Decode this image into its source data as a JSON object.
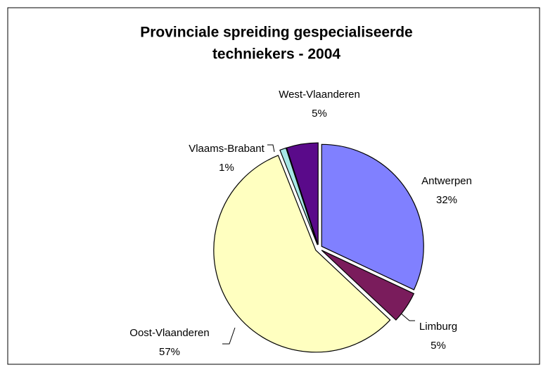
{
  "chart_data": {
    "type": "pie",
    "title": [
      "Provinciale spreiding gespecialiseerde",
      "techniekers - 2004"
    ],
    "categories": [
      "Antwerpen",
      "Limburg",
      "Oost-Vlaanderen",
      "Vlaams-Brabant",
      "West-Vlaanderen"
    ],
    "values": [
      32,
      5,
      57,
      1,
      5
    ],
    "value_labels": [
      "32%",
      "5%",
      "57%",
      "1%",
      "5%"
    ],
    "colors": [
      "#8080ff",
      "#7a1c5c",
      "#ffffc0",
      "#a6e6e6",
      "#5a0a8a"
    ]
  }
}
